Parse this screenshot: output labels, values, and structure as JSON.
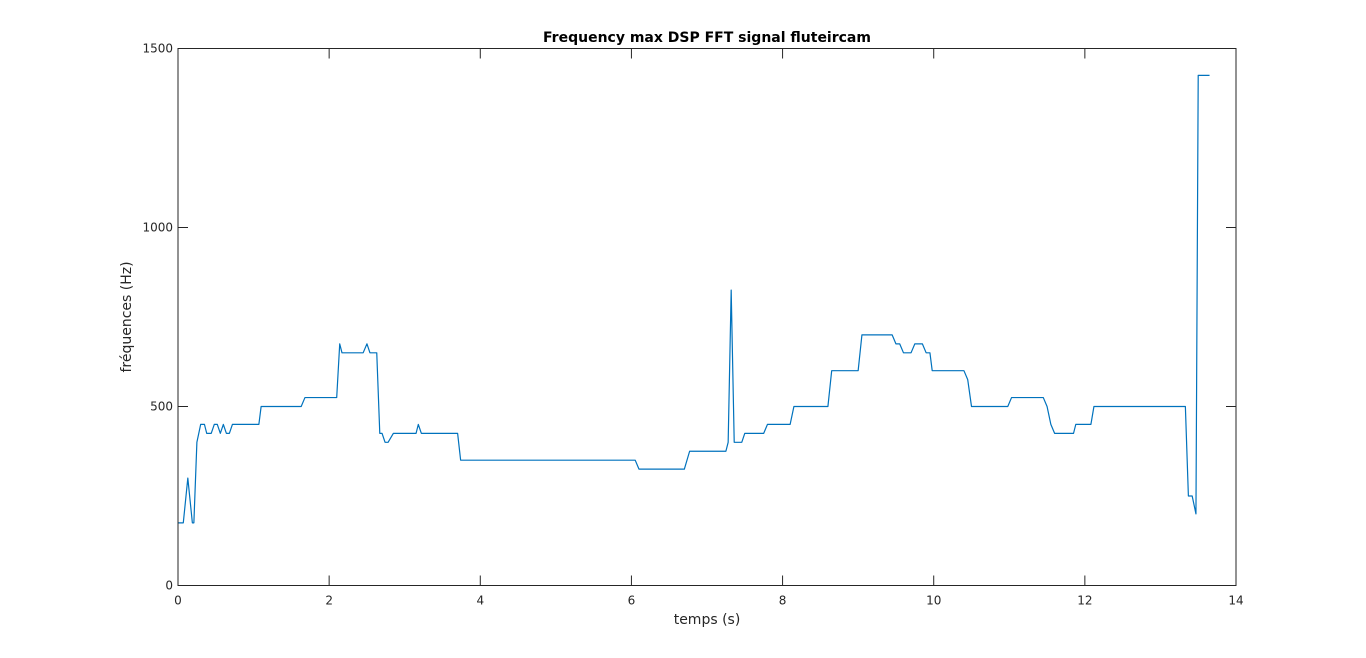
{
  "chart_data": {
    "type": "line",
    "title": "Frequency max DSP FFT signal fluteircam",
    "xlabel": "temps (s)",
    "ylabel": "fréquences (Hz)",
    "xlim": [
      0,
      14
    ],
    "ylim": [
      0,
      1500
    ],
    "xticks": [
      0,
      2,
      4,
      6,
      8,
      10,
      12,
      14
    ],
    "yticks": [
      0,
      500,
      1000,
      1500
    ],
    "grid": false,
    "box": true,
    "series": [
      {
        "color": "#0072bd",
        "x": [
          0.0,
          0.07,
          0.13,
          0.19,
          0.21,
          0.25,
          0.3,
          0.35,
          0.38,
          0.44,
          0.48,
          0.52,
          0.56,
          0.6,
          0.64,
          0.68,
          0.72,
          0.78,
          1.07,
          1.1,
          1.63,
          1.68,
          2.1,
          2.14,
          2.17,
          2.45,
          2.5,
          2.54,
          2.63,
          2.67,
          2.7,
          2.74,
          2.78,
          2.85,
          3.15,
          3.18,
          3.22,
          3.7,
          3.74,
          6.05,
          6.1,
          6.7,
          6.77,
          7.25,
          7.28,
          7.32,
          7.36,
          7.46,
          7.5,
          7.75,
          7.8,
          8.1,
          8.15,
          8.6,
          8.65,
          9.0,
          9.05,
          9.45,
          9.5,
          9.55,
          9.6,
          9.7,
          9.75,
          9.85,
          9.9,
          9.95,
          9.98,
          10.02,
          10.4,
          10.45,
          10.5,
          10.98,
          11.03,
          11.45,
          11.5,
          11.55,
          11.6,
          11.85,
          11.88,
          12.08,
          12.12,
          13.33,
          13.37,
          13.42,
          13.47,
          13.5,
          13.52,
          13.65
        ],
        "y": [
          175,
          175,
          300,
          175,
          175,
          400,
          450,
          450,
          425,
          425,
          450,
          450,
          425,
          450,
          425,
          425,
          450,
          450,
          450,
          500,
          500,
          525,
          525,
          675,
          650,
          650,
          675,
          650,
          650,
          425,
          425,
          400,
          400,
          425,
          425,
          450,
          425,
          425,
          350,
          350,
          325,
          325,
          375,
          375,
          400,
          825,
          400,
          400,
          425,
          425,
          450,
          450,
          500,
          500,
          600,
          600,
          700,
          700,
          675,
          675,
          650,
          650,
          675,
          675,
          650,
          650,
          600,
          600,
          600,
          575,
          500,
          500,
          525,
          525,
          500,
          450,
          425,
          425,
          450,
          450,
          500,
          500,
          250,
          250,
          200,
          1425,
          1425,
          1425
        ]
      }
    ]
  }
}
